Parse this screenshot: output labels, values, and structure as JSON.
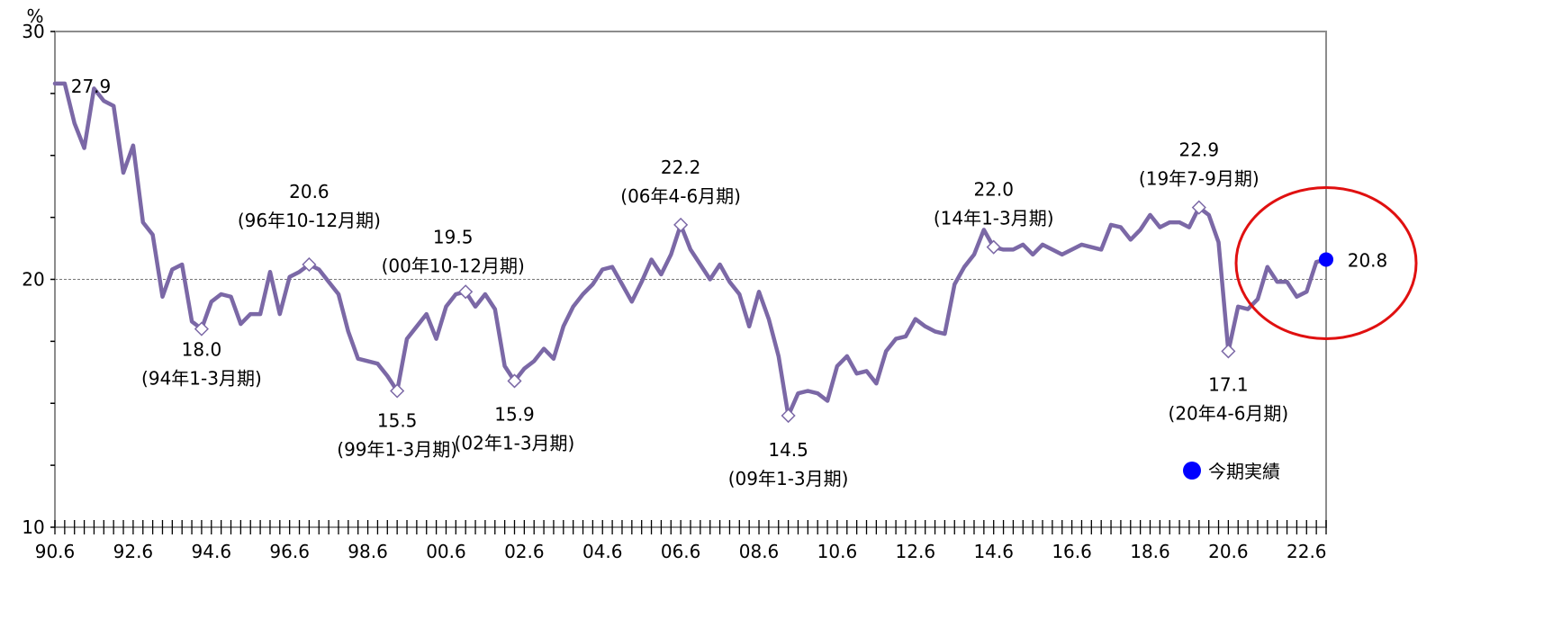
{
  "chart_data": {
    "type": "line",
    "title": "",
    "unit_label": "%",
    "xlabel": "",
    "ylabel": "",
    "ylim": [
      10,
      30
    ],
    "y_ticks": [
      10,
      20,
      30
    ],
    "reference_line": 20,
    "grid": false,
    "x_tick_labels": [
      "90.6",
      "92.6",
      "94.6",
      "96.6",
      "98.6",
      "00.6",
      "02.6",
      "04.6",
      "06.6",
      "08.6",
      "10.6",
      "12.6",
      "14.6",
      "16.6",
      "18.6",
      "20.6",
      "22.6"
    ],
    "x_start": "90.6",
    "x_period": "quarter",
    "series": [
      {
        "color": "#7b68a6",
        "values": [
          27.9,
          27.9,
          26.3,
          25.3,
          27.7,
          27.2,
          27.0,
          24.3,
          25.4,
          22.3,
          21.8,
          19.3,
          20.4,
          20.6,
          18.3,
          18.0,
          19.1,
          19.4,
          19.3,
          18.2,
          18.6,
          18.6,
          20.3,
          18.6,
          20.1,
          20.3,
          20.6,
          20.4,
          19.9,
          19.4,
          17.9,
          16.8,
          16.7,
          16.6,
          16.1,
          15.5,
          17.6,
          18.1,
          18.6,
          17.6,
          18.9,
          19.4,
          19.5,
          18.9,
          19.4,
          18.8,
          16.5,
          15.9,
          16.4,
          16.7,
          17.2,
          16.8,
          18.1,
          18.9,
          19.4,
          19.8,
          20.4,
          20.5,
          19.8,
          19.1,
          19.9,
          20.8,
          20.2,
          21.0,
          22.2,
          21.2,
          20.6,
          20.0,
          20.6,
          19.9,
          19.4,
          18.1,
          19.5,
          18.4,
          16.9,
          14.5,
          15.4,
          15.5,
          15.4,
          15.1,
          16.5,
          16.9,
          16.2,
          16.3,
          15.8,
          17.1,
          17.6,
          17.7,
          18.4,
          18.1,
          17.9,
          17.8,
          19.8,
          20.5,
          21.0,
          22.0,
          21.3,
          21.2,
          21.2,
          21.4,
          21.0,
          21.4,
          21.2,
          21.0,
          21.2,
          21.4,
          21.3,
          21.2,
          22.2,
          22.1,
          21.6,
          22.0,
          22.6,
          22.1,
          22.3,
          22.3,
          22.1,
          22.9,
          22.6,
          21.5,
          17.1,
          18.9,
          18.8,
          19.2,
          20.5,
          19.9,
          19.9,
          19.3,
          19.5,
          20.7,
          20.8
        ]
      }
    ],
    "annotations": [
      {
        "value": "27.9",
        "period": ""
      },
      {
        "value": "18.0",
        "period": "(94年1-3月期)"
      },
      {
        "value": "20.6",
        "period": "(96年10-12月期)"
      },
      {
        "value": "15.5",
        "period": "(99年1-3月期)"
      },
      {
        "value": "19.5",
        "period": "(00年10-12月期)"
      },
      {
        "value": "15.9",
        "period": "(02年1-3月期)"
      },
      {
        "value": "22.2",
        "period": "(06年4-6月期)"
      },
      {
        "value": "14.5",
        "period": "(09年1-3月期)"
      },
      {
        "value": "22.0",
        "period": "(14年1-3月期)"
      },
      {
        "value": "22.9",
        "period": "(19年7-9月期)"
      },
      {
        "value": "17.1",
        "period": "(20年4-6月期)"
      },
      {
        "value": "20.8",
        "period": ""
      }
    ],
    "legend": {
      "label": "今期実績",
      "color": "#0000ff",
      "placement": "bottom-right"
    },
    "highlight_color": "#e01010"
  }
}
